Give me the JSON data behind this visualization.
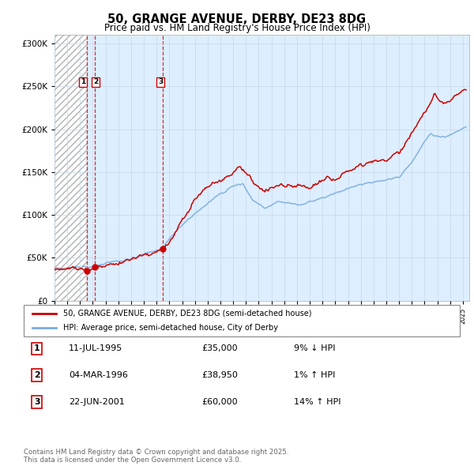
{
  "title": "50, GRANGE AVENUE, DERBY, DE23 8DG",
  "subtitle": "Price paid vs. HM Land Registry's House Price Index (HPI)",
  "ylabel_ticks": [
    "£0",
    "£50K",
    "£100K",
    "£150K",
    "£200K",
    "£250K",
    "£300K"
  ],
  "ytick_vals": [
    0,
    50000,
    100000,
    150000,
    200000,
    250000,
    300000
  ],
  "ylim": [
    0,
    310000
  ],
  "xlim_start": 1993.0,
  "xlim_end": 2025.5,
  "legend_line1": "50, GRANGE AVENUE, DERBY, DE23 8DG (semi-detached house)",
  "legend_line2": "HPI: Average price, semi-detached house, City of Derby",
  "transactions": [
    {
      "label": "1",
      "date": "11-JUL-1995",
      "price": "£35,000",
      "hpi": "9% ↓ HPI",
      "year": 1995.53,
      "value": 35000
    },
    {
      "label": "2",
      "date": "04-MAR-1996",
      "price": "£38,950",
      "hpi": "1% ↑ HPI",
      "year": 1996.17,
      "value": 38950
    },
    {
      "label": "3",
      "date": "22-JUN-2001",
      "price": "£60,000",
      "hpi": "14% ↑ HPI",
      "year": 2001.47,
      "value": 60000
    }
  ],
  "footnote": "Contains HM Land Registry data © Crown copyright and database right 2025.\nThis data is licensed under the Open Government Licence v3.0.",
  "red_color": "#cc0000",
  "blue_color": "#7aaddb",
  "hatch_color": "#cccccc",
  "grid_color": "#c8d8e8",
  "bg_color": "#ffffff",
  "plot_bg": "#ddeeff"
}
